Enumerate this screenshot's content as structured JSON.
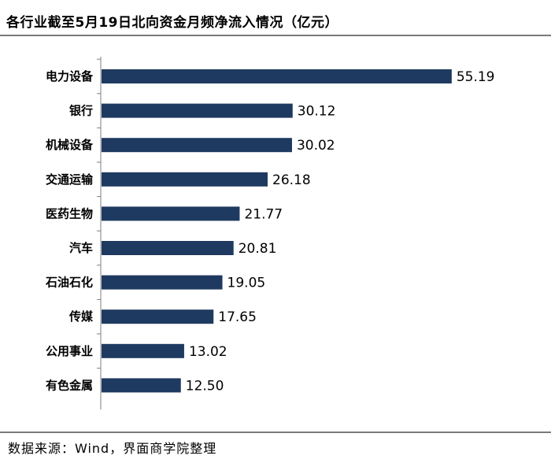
{
  "header": {
    "title": "各行业截至5月19日北向资金月频净流入情况（亿元）"
  },
  "footer": {
    "source": "数据来源：Wind，界面商学院整理"
  },
  "colors": {
    "bar": "#1f3a60"
  },
  "chart_data": {
    "type": "bar",
    "orientation": "horizontal",
    "title": "各行业截至5月19日北向资金月频净流入情况（亿元）",
    "categories": [
      "电力设备",
      "银行",
      "机械设备",
      "交通运输",
      "医药生物",
      "汽车",
      "石油石化",
      "传媒",
      "公用事业",
      "有色金属"
    ],
    "values": [
      55.19,
      30.12,
      30.02,
      26.18,
      21.77,
      20.81,
      19.05,
      17.65,
      13.02,
      12.5
    ],
    "value_labels": [
      "55.19",
      "30.12",
      "30.02",
      "26.18",
      "21.77",
      "20.81",
      "19.05",
      "17.65",
      "13.02",
      "12.50"
    ],
    "xlim": [
      0,
      60
    ],
    "grid": false,
    "legend": "none"
  }
}
